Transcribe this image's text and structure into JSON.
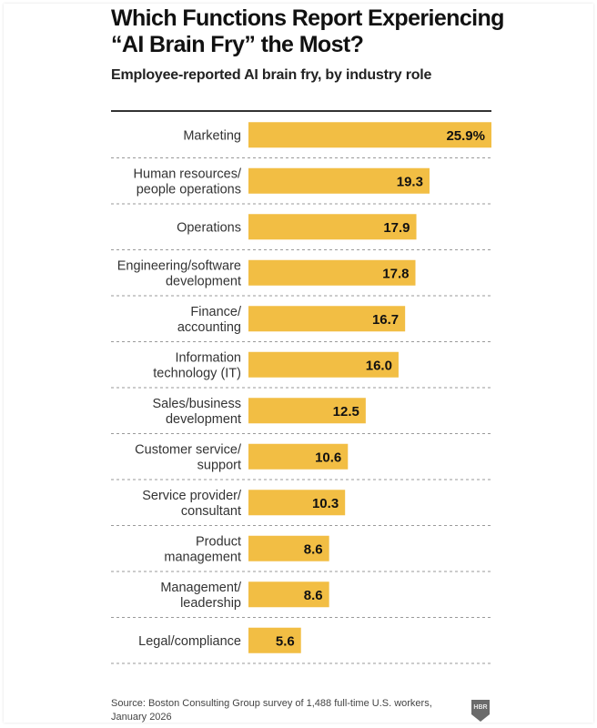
{
  "header": {
    "title_line1": "Which Functions Report Experiencing",
    "title_line2": "“AI Brain Fry” the Most?",
    "subtitle": "Employee-reported AI brain fry, by industry role"
  },
  "footer": {
    "source_line1": "Source: Boston Consulting Group survey of 1,488 full-time U.S. workers,",
    "source_line2": "January 2026",
    "logo_text": "HBR",
    "logo_icon": "hbr-shield-icon"
  },
  "colors": {
    "bar": "#F2BE44",
    "text": "#111111",
    "divider": "#9a9a9a",
    "logo": "#6b6b6b"
  },
  "chart_data": {
    "type": "bar",
    "orientation": "horizontal",
    "title": "Which Functions Report Experiencing “AI Brain Fry” the Most?",
    "subtitle": "Employee-reported AI brain fry, by industry role",
    "xlabel": "",
    "ylabel": "",
    "unit": "%",
    "xlim": [
      0,
      25.9
    ],
    "grid": false,
    "legend": "none",
    "categories": [
      [
        "Marketing"
      ],
      [
        "Human resources/",
        "people operations"
      ],
      [
        "Operations"
      ],
      [
        "Engineering/software",
        "development"
      ],
      [
        "Finance/",
        "accounting"
      ],
      [
        "Information",
        "technology (IT)"
      ],
      [
        "Sales/business",
        "development"
      ],
      [
        "Customer service/",
        "support"
      ],
      [
        "Service provider/",
        "consultant"
      ],
      [
        "Product",
        "management"
      ],
      [
        "Management/",
        "leadership"
      ],
      [
        "Legal/compliance"
      ]
    ],
    "values": [
      25.9,
      19.3,
      17.9,
      17.8,
      16.7,
      16.0,
      12.5,
      10.6,
      10.3,
      8.6,
      8.6,
      5.6
    ],
    "value_labels": [
      "25.9%",
      "19.3",
      "17.9",
      "17.8",
      "16.7",
      "16.0",
      "12.5",
      "10.6",
      "10.3",
      "8.6",
      "8.6",
      "5.6"
    ]
  }
}
